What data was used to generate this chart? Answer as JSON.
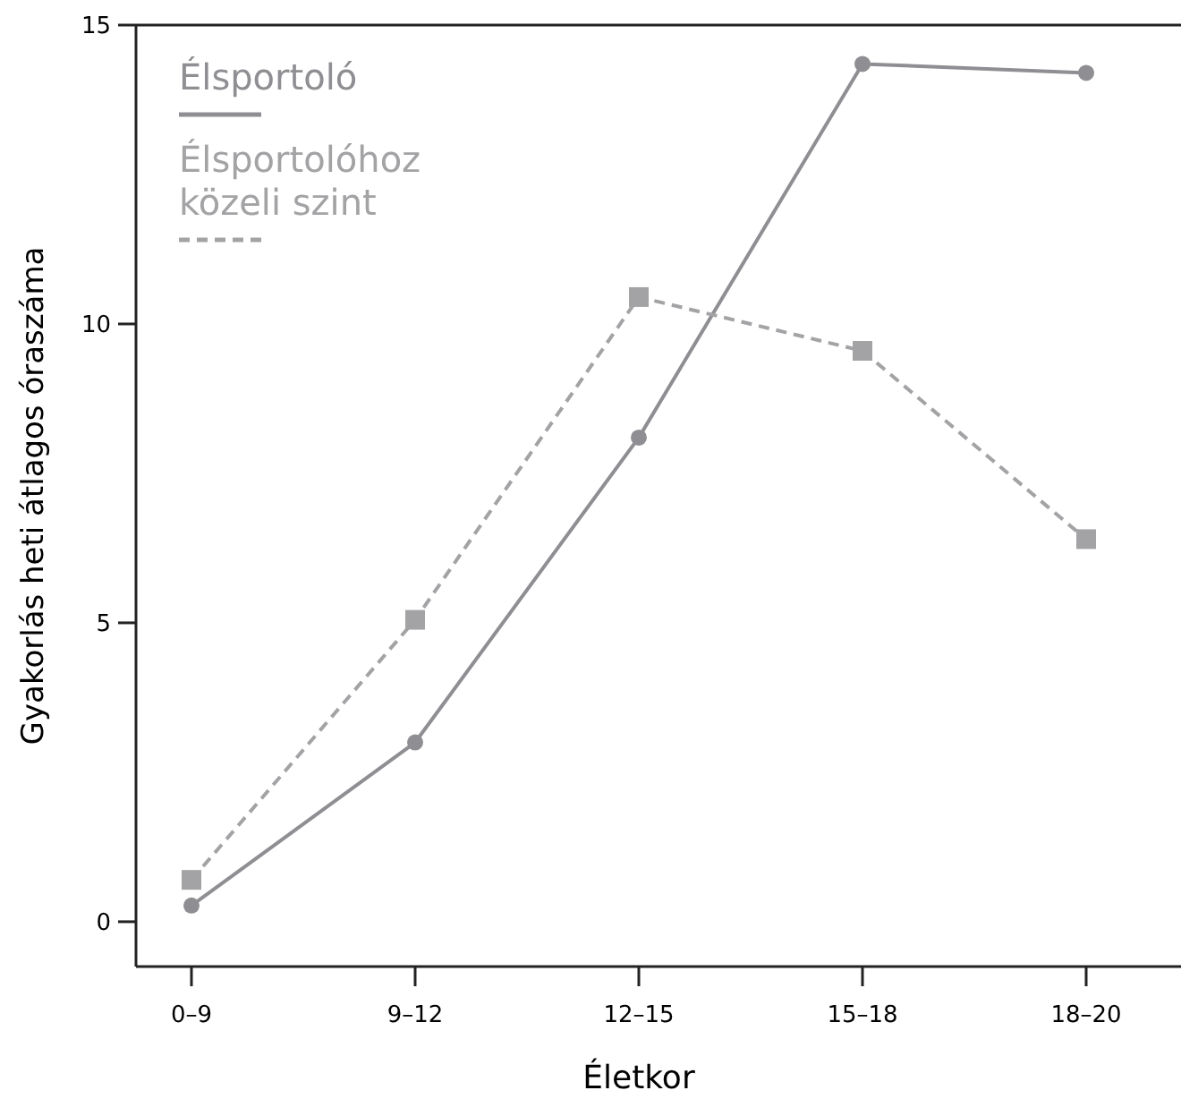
{
  "chart_data": {
    "type": "line",
    "xlabel": "Életkor",
    "ylabel": "Gyakorlás heti átlagos óraszáma",
    "categories": [
      "0–9",
      "9–12",
      "12–15",
      "15–18",
      "18–20"
    ],
    "ylim": [
      -0.75,
      15
    ],
    "yticks": [
      0,
      5,
      10,
      15
    ],
    "grid": false,
    "legend": "top left",
    "series": [
      {
        "name": "Élsportoló",
        "color": "#8f8f93",
        "marker": "circle",
        "line_style": "solid",
        "values": [
          0.27,
          3.0,
          8.1,
          14.35,
          14.2
        ]
      },
      {
        "name": "Élsportolóhoz közeli szint",
        "color": "#a3a3a6",
        "marker": "square",
        "line_style": "dashed",
        "values": [
          0.7,
          5.05,
          10.45,
          9.55,
          6.4
        ]
      }
    ]
  }
}
